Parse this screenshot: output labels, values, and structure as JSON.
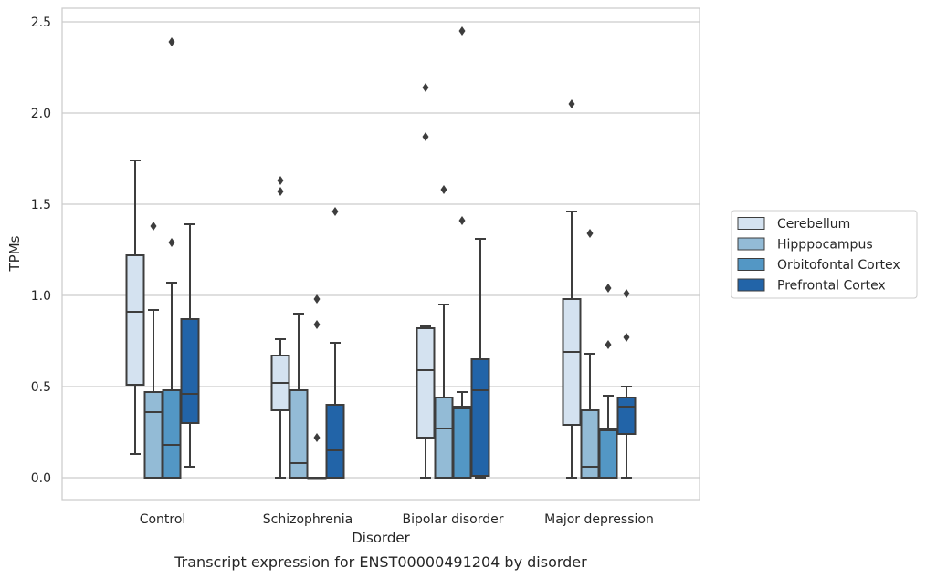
{
  "chart_data": {
    "type": "box",
    "title": "",
    "caption": "Transcript expression for ENST00000491204 by disorder",
    "xlabel": "Disorder",
    "ylabel": "TPMs",
    "ylim": [
      -0.12,
      2.58
    ],
    "yticks": [
      "0.0",
      "0.5",
      "1.0",
      "1.5",
      "2.0",
      "2.5"
    ],
    "ytick_values": [
      0,
      0.5,
      1.0,
      1.5,
      2.0,
      2.5
    ],
    "grid": true,
    "legend_position": "right",
    "categories": [
      "Control",
      "Schizophrenia",
      "Bipolar disorder",
      "Major depression"
    ],
    "series": [
      {
        "name": "Cerebellum",
        "color": "#d4e2f0",
        "boxes": [
          {
            "whislo": 0.13,
            "q1": 0.51,
            "med": 0.91,
            "q3": 1.22,
            "whishi": 1.74,
            "fliers": []
          },
          {
            "whislo": 0.0,
            "q1": 0.37,
            "med": 0.52,
            "q3": 0.67,
            "whishi": 0.76,
            "fliers": [
              1.57,
              1.63
            ]
          },
          {
            "whislo": 0.0,
            "q1": 0.22,
            "med": 0.59,
            "q3": 0.82,
            "whishi": 0.83,
            "fliers": [
              1.87,
              2.14
            ]
          },
          {
            "whislo": 0.0,
            "q1": 0.29,
            "med": 0.69,
            "q3": 0.98,
            "whishi": 1.46,
            "fliers": [
              2.05
            ]
          }
        ]
      },
      {
        "name": "Hipppocampus",
        "color": "#93bbd6",
        "boxes": [
          {
            "whislo": 0.0,
            "q1": 0.0,
            "med": 0.36,
            "q3": 0.47,
            "whishi": 0.92,
            "fliers": [
              1.38
            ]
          },
          {
            "whislo": 0.0,
            "q1": 0.0,
            "med": 0.08,
            "q3": 0.48,
            "whishi": 0.9,
            "fliers": []
          },
          {
            "whislo": 0.0,
            "q1": 0.0,
            "med": 0.27,
            "q3": 0.44,
            "whishi": 0.95,
            "fliers": [
              1.58
            ]
          },
          {
            "whislo": 0.0,
            "q1": 0.0,
            "med": 0.06,
            "q3": 0.37,
            "whishi": 0.68,
            "fliers": [
              1.34
            ]
          }
        ]
      },
      {
        "name": "Orbitofontal Cortex",
        "color": "#5397c5",
        "boxes": [
          {
            "whislo": 0.0,
            "q1": 0.0,
            "med": 0.18,
            "q3": 0.48,
            "whishi": 1.07,
            "fliers": [
              1.29,
              2.39
            ]
          },
          {
            "whislo": 0.0,
            "q1": 0.0,
            "med": 0.0,
            "q3": 0.0,
            "whishi": 0.0,
            "fliers": [
              0.22,
              0.84,
              0.98
            ]
          },
          {
            "whislo": 0.0,
            "q1": 0.0,
            "med": 0.38,
            "q3": 0.39,
            "whishi": 0.47,
            "fliers": [
              1.41,
              2.45
            ]
          },
          {
            "whislo": 0.0,
            "q1": 0.0,
            "med": 0.26,
            "q3": 0.27,
            "whishi": 0.45,
            "fliers": [
              0.73,
              1.04
            ]
          }
        ]
      },
      {
        "name": "Prefrontal Cortex",
        "color": "#2264a8",
        "boxes": [
          {
            "whislo": 0.06,
            "q1": 0.3,
            "med": 0.46,
            "q3": 0.87,
            "whishi": 1.39,
            "fliers": []
          },
          {
            "whislo": 0.0,
            "q1": 0.0,
            "med": 0.15,
            "q3": 0.4,
            "whishi": 0.74,
            "fliers": [
              1.46
            ]
          },
          {
            "whislo": 0.0,
            "q1": 0.01,
            "med": 0.48,
            "q3": 0.65,
            "whishi": 1.31,
            "fliers": []
          },
          {
            "whislo": 0.0,
            "q1": 0.24,
            "med": 0.39,
            "q3": 0.44,
            "whishi": 0.5,
            "fliers": [
              0.77,
              1.01
            ]
          }
        ]
      }
    ]
  }
}
